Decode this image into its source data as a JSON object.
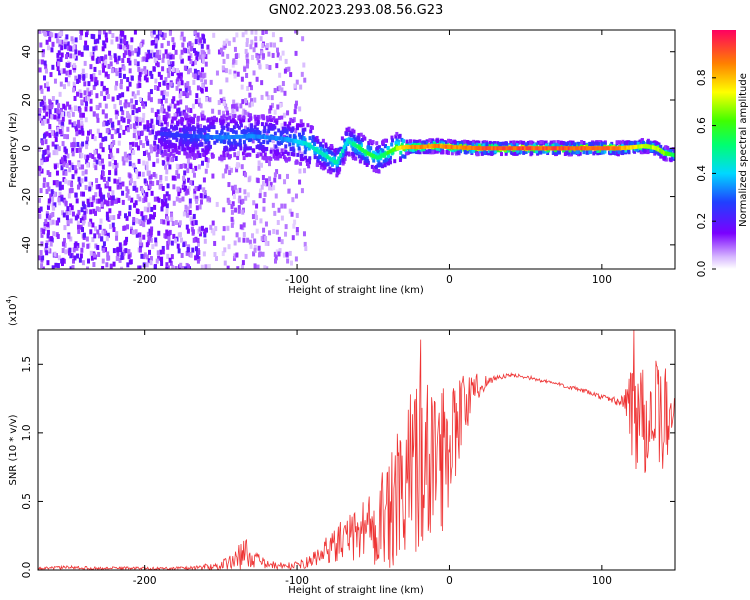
{
  "title": "GN02.2023.293.08.56.G23",
  "chart_data": [
    {
      "type": "heatmap",
      "xlabel": "Height of straight line (km)",
      "ylabel": "Frequency (Hz)",
      "xlim": [
        -270,
        148
      ],
      "ylim": [
        -50,
        49
      ],
      "xticks": [
        -200,
        -100,
        0,
        100
      ],
      "yticks": [
        -40,
        -20,
        0,
        20,
        40
      ],
      "colorbar": {
        "label": "Normalized spectral amplitude",
        "range": [
          0,
          1
        ],
        "ticks": [
          "0.0",
          "0.2",
          "0.4",
          "0.6",
          "0.8"
        ],
        "tick_values": [
          0,
          0.2,
          0.4,
          0.6,
          0.8
        ]
      },
      "ridge": {
        "x": [
          -190,
          -170,
          -150,
          -130,
          -110,
          -95,
          -85,
          -75,
          -68,
          -62,
          -55,
          -48,
          -42,
          -36,
          -30,
          -20,
          -10,
          0,
          20,
          50,
          80,
          110,
          120,
          128,
          135,
          140,
          148
        ],
        "freq": [
          6,
          5,
          4.5,
          5,
          4,
          2,
          -2,
          -6,
          3,
          1,
          -2,
          -4,
          -2,
          0,
          0.5,
          0.5,
          1,
          0.5,
          0,
          0,
          0,
          0,
          0.5,
          1,
          0,
          -2,
          -3
        ],
        "amplitude": [
          0.25,
          0.3,
          0.35,
          0.35,
          0.35,
          0.45,
          0.5,
          0.5,
          0.45,
          0.55,
          0.6,
          0.55,
          0.6,
          0.7,
          0.85,
          0.9,
          0.9,
          0.9,
          0.95,
          0.95,
          0.95,
          0.9,
          0.8,
          0.7,
          0.75,
          0.7,
          0.55
        ]
      },
      "noise_region": {
        "x": [
          -270,
          -95
        ],
        "freq": [
          -50,
          49
        ],
        "amplitude": [
          0.1,
          0.3
        ]
      }
    },
    {
      "type": "line",
      "xlabel": "Height of straight line (km)",
      "ylabel": "SNR (10 * v/v)",
      "scale_label": "(x10",
      "scale_exponent": "4",
      "xlim": [
        -270,
        148
      ],
      "ylim": [
        0,
        17500
      ],
      "xticks": [
        -200,
        -100,
        0,
        100
      ],
      "yticks": [
        0,
        5000,
        10000,
        15000
      ],
      "ytick_labels": [
        "0.0",
        "0.5",
        "1.0",
        "1.5"
      ],
      "color": "#ee3333",
      "series": [
        {
          "x": [
            -270,
            -250,
            -230,
            -210,
            -190,
            -170,
            -150,
            -140,
            -135,
            -130,
            -120,
            -110,
            -100,
            -90,
            -80,
            -70,
            -60,
            -55,
            -50,
            -45,
            -40,
            -35,
            -30,
            -25,
            -20,
            -15,
            -10,
            -5,
            0,
            10,
            20,
            30,
            40,
            50,
            60,
            70,
            80,
            90,
            100,
            110,
            115,
            120,
            125,
            130,
            140,
            148
          ],
          "values": [
            100,
            200,
            120,
            150,
            100,
            150,
            300,
            800,
            1300,
            900,
            400,
            300,
            300,
            700,
            1500,
            2200,
            2500,
            3500,
            3000,
            4000,
            3500,
            5000,
            4500,
            7500,
            8500,
            7000,
            9000,
            8000,
            10000,
            12000,
            13500,
            14000,
            14200,
            14100,
            13800,
            13600,
            13300,
            13000,
            12600,
            12300,
            12200,
            12000,
            11500,
            11500,
            11000,
            11000
          ],
          "noise": [
            80,
            120,
            100,
            100,
            100,
            150,
            300,
            700,
            1300,
            700,
            300,
            250,
            300,
            500,
            1000,
            1500,
            2000,
            2500,
            3000,
            3500,
            4000,
            5000,
            5500,
            6500,
            7000,
            6500,
            6000,
            5500,
            5000,
            2500,
            800,
            200,
            150,
            150,
            150,
            150,
            150,
            150,
            200,
            300,
            700,
            4500,
            5000,
            4500,
            4000,
            3500
          ],
          "peaks": [
            {
              "x": -19,
              "y": 16800
            },
            {
              "x": 121,
              "y": 17500
            }
          ]
        }
      ]
    }
  ]
}
